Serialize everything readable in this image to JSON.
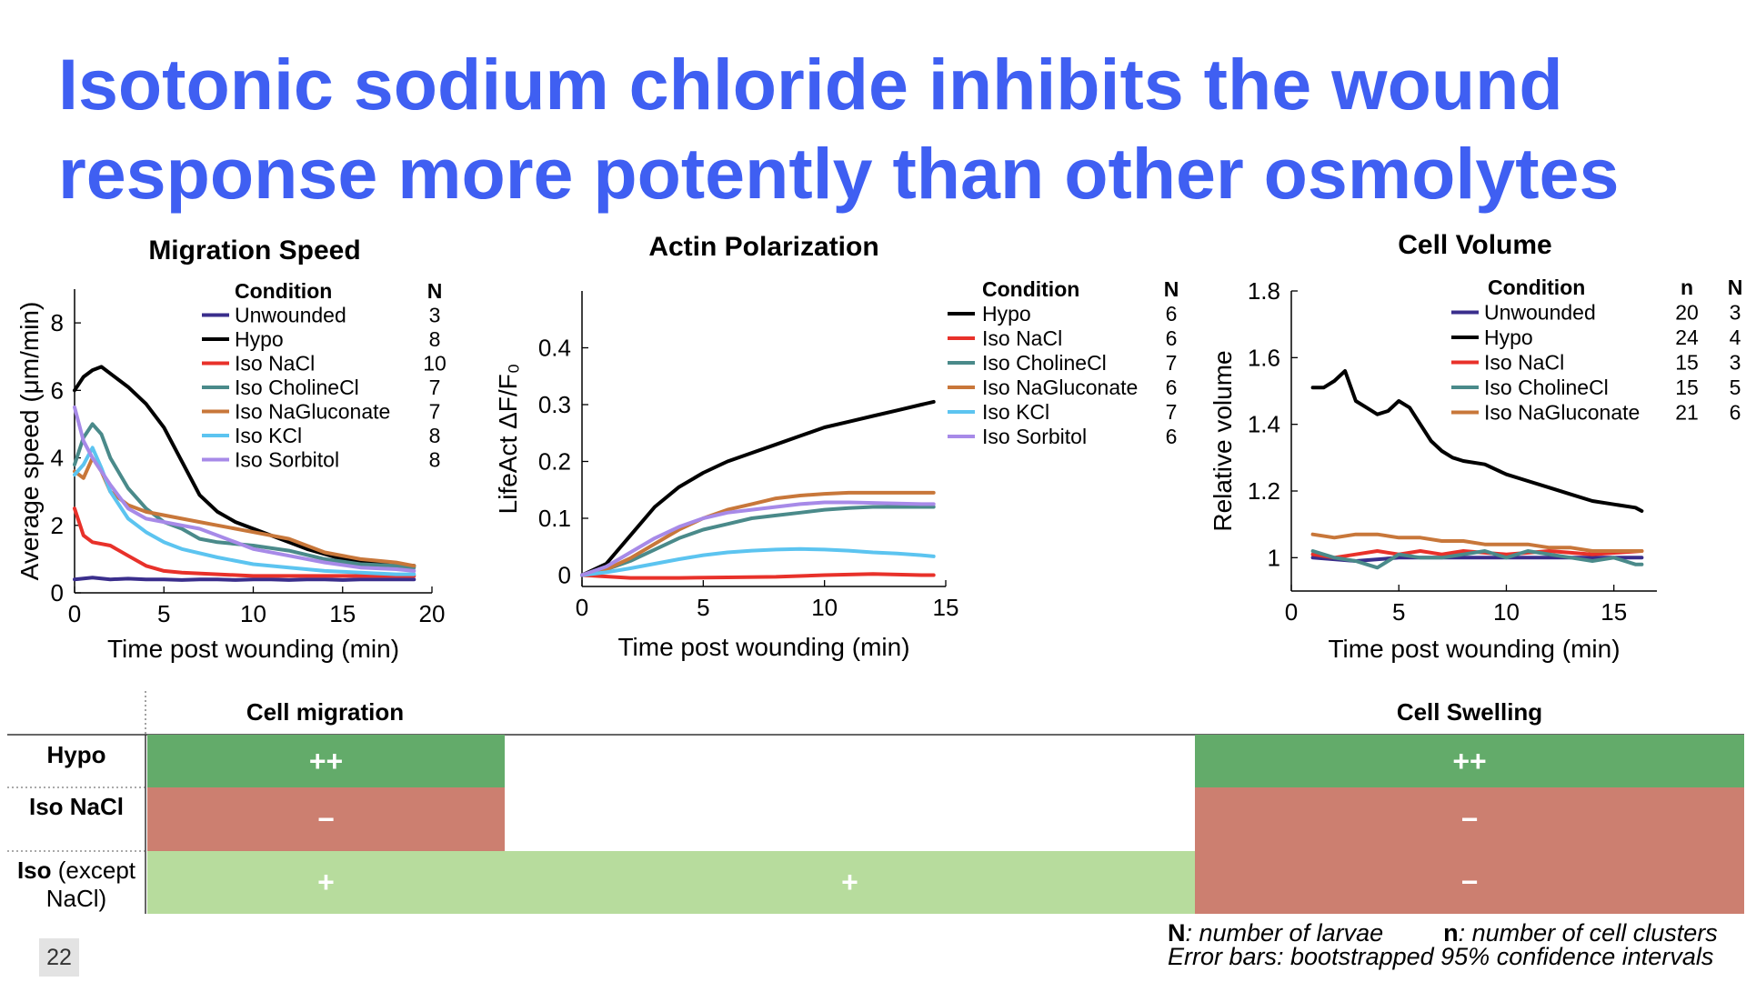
{
  "slide": {
    "title_line1": "Isotonic sodium chloride inhibits the wound",
    "title_line2": "response more potently than other osmolytes",
    "page_number": "22"
  },
  "colors": {
    "title": "#3f5ff2",
    "Unwounded": "#3a2e8c",
    "Hypo": "#000000",
    "Iso NaCl": "#e8312a",
    "Iso CholineCl": "#4a8a8a",
    "Iso NaGluconate": "#c8773a",
    "Iso KCl": "#5cc4f0",
    "Iso Sorbitol": "#a78ae8",
    "green_strong": "#63ab6a",
    "green_light": "#b7dc9d",
    "red_muted": "#cc7f70"
  },
  "chart_data": [
    {
      "type": "line",
      "title": "Migration Speed",
      "xlabel": "Time post wounding (min)",
      "ylabel": "Average speed (μm/min)",
      "xlim": [
        0,
        20
      ],
      "ylim": [
        0,
        9
      ],
      "xticks": [
        0,
        5,
        10,
        15,
        20
      ],
      "yticks": [
        0,
        2,
        4,
        6,
        8
      ],
      "legend_header": [
        "Condition",
        "N"
      ],
      "legend_placement": "top-right",
      "series": [
        {
          "name": "Unwounded",
          "n": "3",
          "x": [
            0,
            1,
            2,
            3,
            4,
            5,
            6,
            7,
            8,
            9,
            10,
            11,
            12,
            13,
            14,
            15,
            16,
            17,
            18,
            19
          ],
          "y": [
            0.4,
            0.45,
            0.4,
            0.42,
            0.4,
            0.4,
            0.38,
            0.4,
            0.4,
            0.38,
            0.4,
            0.4,
            0.38,
            0.4,
            0.4,
            0.38,
            0.4,
            0.4,
            0.4,
            0.4
          ]
        },
        {
          "name": "Hypo",
          "n": "8",
          "x": [
            0,
            0.5,
            1,
            1.5,
            2,
            3,
            4,
            5,
            6,
            7,
            8,
            9,
            10,
            11,
            12,
            13,
            14,
            15,
            16,
            17,
            18,
            19
          ],
          "y": [
            6.0,
            6.4,
            6.6,
            6.7,
            6.5,
            6.1,
            5.6,
            4.9,
            3.9,
            2.9,
            2.4,
            2.1,
            1.9,
            1.7,
            1.5,
            1.3,
            1.15,
            1.0,
            0.95,
            0.9,
            0.85,
            0.8
          ]
        },
        {
          "name": "Iso NaCl",
          "n": "10",
          "x": [
            0,
            0.5,
            1,
            2,
            3,
            4,
            5,
            6,
            8,
            10,
            12,
            14,
            16,
            18,
            19
          ],
          "y": [
            2.5,
            1.7,
            1.5,
            1.4,
            1.1,
            0.8,
            0.65,
            0.6,
            0.55,
            0.5,
            0.5,
            0.5,
            0.5,
            0.5,
            0.5
          ]
        },
        {
          "name": "Iso CholineCl",
          "n": "7",
          "x": [
            0,
            0.5,
            1,
            1.5,
            2,
            3,
            4,
            5,
            6,
            7,
            8,
            10,
            12,
            14,
            16,
            18,
            19
          ],
          "y": [
            3.8,
            4.6,
            5.0,
            4.7,
            4.0,
            3.1,
            2.5,
            2.1,
            1.9,
            1.6,
            1.5,
            1.4,
            1.25,
            1.0,
            0.85,
            0.8,
            0.75
          ]
        },
        {
          "name": "Iso NaGluconate",
          "n": "7",
          "x": [
            0,
            0.5,
            1,
            1.5,
            2,
            3,
            4,
            5,
            6,
            7,
            8,
            10,
            12,
            14,
            16,
            18,
            19
          ],
          "y": [
            3.6,
            3.4,
            4.0,
            3.6,
            3.0,
            2.6,
            2.4,
            2.3,
            2.2,
            2.1,
            2.0,
            1.8,
            1.6,
            1.2,
            1.0,
            0.9,
            0.8
          ]
        },
        {
          "name": "Iso KCl",
          "n": "8",
          "x": [
            0,
            0.5,
            1,
            1.5,
            2,
            3,
            4,
            5,
            6,
            8,
            10,
            12,
            14,
            16,
            18,
            19
          ],
          "y": [
            3.5,
            3.8,
            4.3,
            3.7,
            3.0,
            2.2,
            1.8,
            1.5,
            1.3,
            1.05,
            0.85,
            0.75,
            0.65,
            0.6,
            0.55,
            0.55
          ]
        },
        {
          "name": "Iso Sorbitol",
          "n": "8",
          "x": [
            0,
            0.5,
            1,
            1.5,
            2,
            3,
            4,
            5,
            6,
            7,
            8,
            9,
            10,
            12,
            14,
            16,
            18,
            19
          ],
          "y": [
            5.5,
            4.5,
            4.0,
            3.6,
            3.2,
            2.5,
            2.2,
            2.1,
            2.0,
            1.9,
            1.7,
            1.5,
            1.3,
            1.1,
            0.9,
            0.75,
            0.7,
            0.65
          ]
        }
      ]
    },
    {
      "type": "line",
      "title": "Actin Polarization",
      "xlabel": "Time post wounding (min)",
      "ylabel": "LifeAct ΔF/F₀",
      "xlim": [
        0,
        15
      ],
      "ylim": [
        -0.02,
        0.5
      ],
      "xticks": [
        0,
        5,
        10,
        15
      ],
      "yticks": [
        0,
        0.1,
        0.2,
        0.3,
        0.4
      ],
      "legend_header": [
        "Condition",
        "N"
      ],
      "legend_placement": "top-right",
      "series": [
        {
          "name": "Hypo",
          "n": "6",
          "x": [
            0,
            1,
            2,
            3,
            4,
            5,
            6,
            7,
            8,
            9,
            10,
            11,
            12,
            13,
            14,
            14.5
          ],
          "y": [
            0,
            0.02,
            0.07,
            0.12,
            0.155,
            0.18,
            0.2,
            0.215,
            0.23,
            0.245,
            0.26,
            0.27,
            0.28,
            0.29,
            0.3,
            0.305
          ]
        },
        {
          "name": "Iso NaCl",
          "n": "6",
          "x": [
            0,
            2,
            4,
            6,
            8,
            10,
            12,
            14,
            14.5
          ],
          "y": [
            0,
            -0.005,
            -0.005,
            -0.004,
            -0.003,
            0.0,
            0.002,
            0.0,
            0.0
          ]
        },
        {
          "name": "Iso CholineCl",
          "n": "7",
          "x": [
            0,
            1,
            2,
            3,
            4,
            5,
            6,
            7,
            8,
            9,
            10,
            11,
            12,
            13,
            14,
            14.5
          ],
          "y": [
            0,
            0.01,
            0.025,
            0.045,
            0.065,
            0.08,
            0.09,
            0.1,
            0.105,
            0.11,
            0.115,
            0.118,
            0.12,
            0.12,
            0.12,
            0.12
          ]
        },
        {
          "name": "Iso NaGluconate",
          "n": "6",
          "x": [
            0,
            1,
            2,
            3,
            4,
            5,
            6,
            7,
            8,
            9,
            10,
            11,
            12,
            13,
            14,
            14.5
          ],
          "y": [
            0,
            0.01,
            0.03,
            0.055,
            0.08,
            0.1,
            0.115,
            0.125,
            0.135,
            0.14,
            0.143,
            0.145,
            0.145,
            0.145,
            0.145,
            0.145
          ]
        },
        {
          "name": "Iso KCl",
          "n": "7",
          "x": [
            0,
            1,
            2,
            3,
            4,
            5,
            6,
            7,
            8,
            9,
            10,
            11,
            12,
            13,
            14,
            14.5
          ],
          "y": [
            0,
            0.005,
            0.012,
            0.02,
            0.028,
            0.035,
            0.04,
            0.043,
            0.045,
            0.046,
            0.045,
            0.043,
            0.04,
            0.038,
            0.035,
            0.033
          ]
        },
        {
          "name": "Iso Sorbitol",
          "n": "6",
          "x": [
            0,
            1,
            2,
            3,
            4,
            5,
            6,
            7,
            8,
            9,
            10,
            11,
            12,
            13,
            14,
            14.5
          ],
          "y": [
            0,
            0.015,
            0.04,
            0.065,
            0.085,
            0.1,
            0.11,
            0.115,
            0.12,
            0.125,
            0.128,
            0.128,
            0.127,
            0.126,
            0.125,
            0.125
          ]
        }
      ]
    },
    {
      "type": "line",
      "title": "Cell Volume",
      "xlabel": "Time post wounding (min)",
      "ylabel": "Relative volume",
      "xlim": [
        0,
        17
      ],
      "ylim": [
        0.9,
        1.8
      ],
      "xticks": [
        0,
        5,
        10,
        15
      ],
      "yticks": [
        1,
        1.2,
        1.4,
        1.6,
        1.8
      ],
      "legend_header": [
        "Condition",
        "n",
        "N"
      ],
      "legend_placement": "top-right",
      "series": [
        {
          "name": "Unwounded",
          "n": "20",
          "N": "3",
          "x": [
            1,
            3,
            5,
            7,
            9,
            11,
            13,
            15,
            16.3
          ],
          "y": [
            1.0,
            0.99,
            1.0,
            1.0,
            1.0,
            1.0,
            1.0,
            1.0,
            1.0
          ]
        },
        {
          "name": "Hypo",
          "n": "24",
          "N": "4",
          "x": [
            1,
            1.5,
            2,
            2.5,
            3,
            3.5,
            4,
            4.5,
            5,
            5.5,
            6,
            6.5,
            7,
            7.5,
            8,
            9,
            10,
            11,
            12,
            13,
            14,
            15,
            16,
            16.3
          ],
          "y": [
            1.51,
            1.51,
            1.53,
            1.56,
            1.47,
            1.45,
            1.43,
            1.44,
            1.47,
            1.45,
            1.4,
            1.35,
            1.32,
            1.3,
            1.29,
            1.28,
            1.25,
            1.23,
            1.21,
            1.19,
            1.17,
            1.16,
            1.15,
            1.14
          ]
        },
        {
          "name": "Iso NaCl",
          "n": "15",
          "N": "3",
          "x": [
            1,
            2,
            3,
            4,
            5,
            6,
            7,
            8,
            10,
            12,
            14,
            16.3
          ],
          "y": [
            1.01,
            1.0,
            1.01,
            1.02,
            1.01,
            1.02,
            1.01,
            1.02,
            1.01,
            1.02,
            1.01,
            1.02
          ]
        },
        {
          "name": "Iso CholineCl",
          "n": "15",
          "N": "5",
          "x": [
            1,
            2,
            3,
            3.5,
            4,
            5,
            6,
            7,
            8,
            9,
            10,
            11,
            12,
            13,
            14,
            15,
            16,
            16.3
          ],
          "y": [
            1.02,
            1.0,
            0.99,
            0.98,
            0.97,
            1.01,
            1.0,
            1.0,
            1.01,
            1.02,
            1.0,
            1.02,
            1.01,
            1.0,
            0.99,
            1.0,
            0.98,
            0.98
          ]
        },
        {
          "name": "Iso NaGluconate",
          "n": "21",
          "N": "6",
          "x": [
            1,
            2,
            3,
            4,
            5,
            6,
            7,
            8,
            9,
            10,
            11,
            12,
            13,
            14,
            15,
            16.3
          ],
          "y": [
            1.07,
            1.06,
            1.07,
            1.07,
            1.06,
            1.06,
            1.05,
            1.05,
            1.04,
            1.04,
            1.04,
            1.03,
            1.03,
            1.02,
            1.02,
            1.02
          ]
        }
      ]
    }
  ],
  "summary": {
    "col_headers": [
      "Cell migration",
      "Cell Swelling"
    ],
    "rows": [
      {
        "label_bold": "Hypo",
        "label_rest": "",
        "label_rest2": "",
        "migration": "++",
        "actin": "",
        "swelling": "++"
      },
      {
        "label_bold": "Iso NaCl",
        "label_rest": "",
        "label_rest2": "",
        "migration": "−",
        "actin": "",
        "swelling": "−"
      },
      {
        "label_bold": "Iso",
        "label_rest": " (except",
        "label_rest2": "NaCl)",
        "migration": "+",
        "actin": "+",
        "swelling": "−"
      }
    ]
  },
  "notes": {
    "N_key": "N",
    "N_text": ": number of larvae",
    "n_key": "n",
    "n_text": ": number of cell clusters",
    "errorbars": "Error bars: bootstrapped 95% confidence intervals"
  }
}
